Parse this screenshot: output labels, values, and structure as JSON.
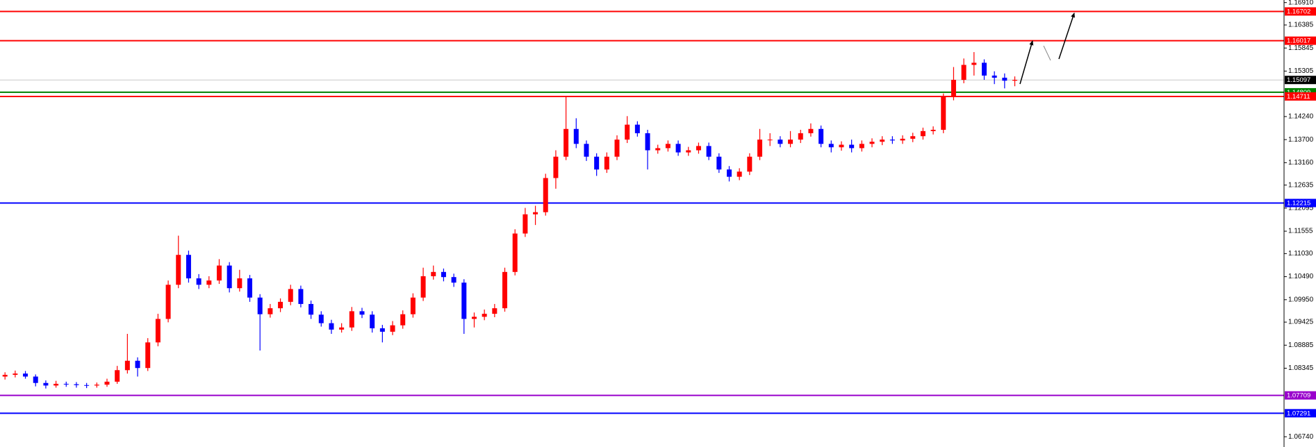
{
  "chart_data": {
    "type": "candlestick",
    "up_color": "#ff0000",
    "down_color": "#0000ff",
    "ylim": [
      1.065,
      1.1697
    ],
    "yticks": [
      {
        "value": 1.1691,
        "label": "1.16910"
      },
      1.16385,
      1.15845,
      1.15305,
      {
        "value": 1.1424,
        "label": "1.14240"
      },
      {
        "value": 1.137,
        "label": "1.13700"
      },
      {
        "value": 1.1316,
        "label": "1.13160"
      },
      1.12635,
      1.12095,
      1.11555,
      {
        "value": 1.1103,
        "label": "1.11030"
      },
      {
        "value": 1.1049,
        "label": "1.10490"
      },
      {
        "value": 1.0995,
        "label": "1.09950"
      },
      1.09425,
      1.08885,
      1.08345,
      {
        "value": 1.0674,
        "label": "1.06740"
      }
    ],
    "levels": [
      {
        "value": 1.16702,
        "color": "#ff0000"
      },
      {
        "value": 1.16017,
        "color": "#ff0000"
      },
      {
        "value": 1.15097,
        "color": "#000000",
        "line_color": "#c8c8c8"
      },
      {
        "value": 1.14809,
        "color": "#008000"
      },
      {
        "value": 1.14711,
        "color": "#ff0000"
      },
      {
        "value": 1.12215,
        "color": "#0000ff"
      },
      {
        "value": 1.07709,
        "color": "#9900cc"
      },
      {
        "value": 1.07291,
        "color": "#0000ff"
      }
    ],
    "candles": [
      [
        1.0815,
        1.0825,
        1.0808,
        1.0819
      ],
      [
        1.0819,
        1.0829,
        1.0813,
        1.0822
      ],
      [
        1.0822,
        1.0828,
        1.081,
        1.0815
      ],
      [
        1.0815,
        1.082,
        1.0792,
        1.08
      ],
      [
        1.08,
        1.0806,
        1.0787,
        1.0794
      ],
      [
        1.0794,
        1.0805,
        1.0789,
        1.0798
      ],
      [
        1.0798,
        1.0803,
        1.0791,
        1.0797
      ],
      [
        1.0797,
        1.0802,
        1.0789,
        1.0795
      ],
      [
        1.0795,
        1.08,
        1.0788,
        1.0794
      ],
      [
        1.0794,
        1.0801,
        1.0789,
        1.0796
      ],
      [
        1.0796,
        1.081,
        1.0791,
        1.0803
      ],
      [
        1.0803,
        1.084,
        1.0798,
        1.083
      ],
      [
        1.083,
        1.0915,
        1.0822,
        1.0852
      ],
      [
        1.0852,
        1.086,
        1.0815,
        1.0835
      ],
      [
        1.0835,
        1.0905,
        1.0828,
        1.0895
      ],
      [
        1.0895,
        1.0962,
        1.0886,
        1.095
      ],
      [
        1.095,
        1.104,
        1.0942,
        1.103
      ],
      [
        1.103,
        1.1145,
        1.1022,
        1.11
      ],
      [
        1.11,
        1.111,
        1.1035,
        1.1045
      ],
      [
        1.1045,
        1.1055,
        1.102,
        1.103
      ],
      [
        1.103,
        1.105,
        1.1022,
        1.104
      ],
      [
        1.104,
        1.109,
        1.1032,
        1.1075
      ],
      [
        1.1075,
        1.1083,
        1.1012,
        1.1022
      ],
      [
        1.1022,
        1.1065,
        1.1014,
        1.1045
      ],
      [
        1.1045,
        1.1053,
        1.099,
        1.1
      ],
      [
        1.1,
        1.1008,
        1.0876,
        1.0961
      ],
      [
        1.0961,
        1.0985,
        1.0953,
        1.0975
      ],
      [
        1.0975,
        1.0998,
        1.0966,
        1.099
      ],
      [
        1.099,
        1.103,
        1.0982,
        1.102
      ],
      [
        1.102,
        1.1028,
        1.0977,
        1.0985
      ],
      [
        1.0985,
        1.0993,
        1.095,
        1.096
      ],
      [
        1.096,
        1.0968,
        1.0932,
        1.094
      ],
      [
        1.094,
        1.0948,
        1.0915,
        1.0925
      ],
      [
        1.0925,
        1.094,
        1.0918,
        1.093
      ],
      [
        1.093,
        1.0978,
        1.0922,
        1.0968
      ],
      [
        1.0968,
        1.0976,
        1.0952,
        1.096
      ],
      [
        1.096,
        1.0968,
        1.0918,
        1.0928
      ],
      [
        1.0928,
        1.0936,
        1.0895,
        1.092
      ],
      [
        1.092,
        1.0945,
        1.0912,
        1.0935
      ],
      [
        1.0935,
        1.097,
        1.0927,
        1.0961
      ],
      [
        1.0961,
        1.101,
        1.0953,
        1.1
      ],
      [
        1.1,
        1.107,
        1.0992,
        1.105
      ],
      [
        1.105,
        1.1075,
        1.1042,
        1.106
      ],
      [
        1.106,
        1.1068,
        1.1038,
        1.1048
      ],
      [
        1.1048,
        1.1056,
        1.1025,
        1.1035
      ],
      [
        1.1035,
        1.1043,
        1.0915,
        1.095
      ],
      [
        1.095,
        1.0965,
        1.093,
        1.0955
      ],
      [
        1.0955,
        1.0972,
        1.0947,
        1.0962
      ],
      [
        1.0962,
        1.0985,
        1.0954,
        1.0975
      ],
      [
        1.0975,
        1.107,
        1.0967,
        1.106
      ],
      [
        1.106,
        1.116,
        1.1052,
        1.115
      ],
      [
        1.115,
        1.121,
        1.1142,
        1.1195
      ],
      [
        1.1195,
        1.1215,
        1.117,
        1.12
      ],
      [
        1.12,
        1.129,
        1.1192,
        1.128
      ],
      [
        1.128,
        1.1345,
        1.1255,
        1.133
      ],
      [
        1.133,
        1.1471,
        1.1322,
        1.1395
      ],
      [
        1.1395,
        1.142,
        1.135,
        1.136
      ],
      [
        1.136,
        1.1368,
        1.132,
        1.133
      ],
      [
        1.133,
        1.1338,
        1.1285,
        1.13
      ],
      [
        1.13,
        1.134,
        1.1292,
        1.133
      ],
      [
        1.133,
        1.138,
        1.1322,
        1.137
      ],
      [
        1.137,
        1.1425,
        1.1362,
        1.1405
      ],
      [
        1.1405,
        1.1413,
        1.1377,
        1.1385
      ],
      [
        1.1385,
        1.1393,
        1.13,
        1.1345
      ],
      [
        1.1345,
        1.1358,
        1.1337,
        1.135
      ],
      [
        1.135,
        1.1368,
        1.1342,
        1.136
      ],
      [
        1.136,
        1.1368,
        1.1332,
        1.134
      ],
      [
        1.134,
        1.1353,
        1.1332,
        1.1345
      ],
      [
        1.1345,
        1.1363,
        1.1337,
        1.1355
      ],
      [
        1.1355,
        1.1363,
        1.1322,
        1.133
      ],
      [
        1.133,
        1.1338,
        1.1292,
        1.13
      ],
      [
        1.13,
        1.1308,
        1.1272,
        1.1283
      ],
      [
        1.1283,
        1.1303,
        1.1275,
        1.1295
      ],
      [
        1.1295,
        1.1338,
        1.1287,
        1.133
      ],
      [
        1.133,
        1.1395,
        1.1322,
        1.137
      ],
      [
        1.137,
        1.1385,
        1.1355,
        1.137
      ],
      [
        1.137,
        1.1378,
        1.1352,
        1.136
      ],
      [
        1.136,
        1.139,
        1.1352,
        1.137
      ],
      [
        1.137,
        1.1393,
        1.1362,
        1.1385
      ],
      [
        1.1385,
        1.1408,
        1.1377,
        1.1395
      ],
      [
        1.1395,
        1.1403,
        1.1352,
        1.136
      ],
      [
        1.136,
        1.1368,
        1.134,
        1.1352
      ],
      [
        1.1352,
        1.1366,
        1.1344,
        1.1358
      ],
      [
        1.1358,
        1.137,
        1.134,
        1.135
      ],
      [
        1.135,
        1.1368,
        1.1342,
        1.136
      ],
      [
        1.136,
        1.1373,
        1.1352,
        1.1365
      ],
      [
        1.1365,
        1.1378,
        1.1357,
        1.137
      ],
      [
        1.137,
        1.1378,
        1.136,
        1.1368
      ],
      [
        1.1368,
        1.138,
        1.136,
        1.1372
      ],
      [
        1.1372,
        1.1386,
        1.1364,
        1.1378
      ],
      [
        1.1378,
        1.1398,
        1.137,
        1.139
      ],
      [
        1.139,
        1.1401,
        1.1382,
        1.1393
      ],
      [
        1.1393,
        1.1478,
        1.1385,
        1.147
      ],
      [
        1.147,
        1.154,
        1.1462,
        1.151
      ],
      [
        1.151,
        1.156,
        1.1502,
        1.1545
      ],
      [
        1.1545,
        1.1575,
        1.152,
        1.155
      ],
      [
        1.155,
        1.1558,
        1.151,
        1.152
      ],
      [
        1.152,
        1.153,
        1.15,
        1.1515
      ],
      [
        1.1515,
        1.1525,
        1.149,
        1.1508
      ],
      [
        1.1508,
        1.1518,
        1.1495,
        1.151
      ]
    ]
  }
}
